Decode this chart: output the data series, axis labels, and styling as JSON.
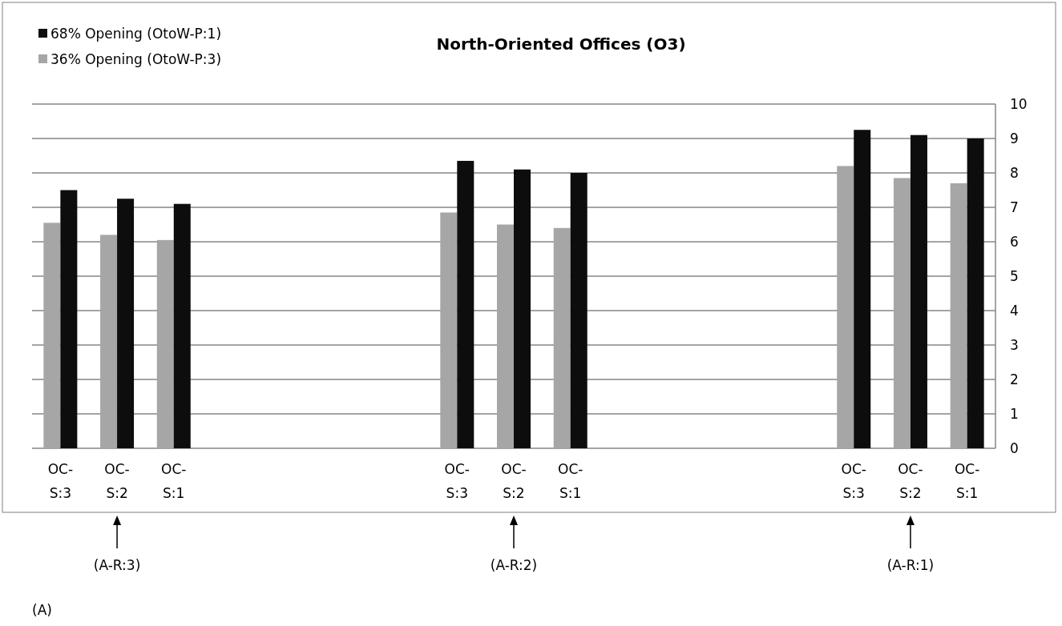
{
  "chart_data": {
    "type": "bar",
    "title": "North-Oriented Offices (O3)",
    "categories": [
      "OC-S:3",
      "OC-S:2",
      "OC-S:1",
      null,
      null,
      null,
      null,
      "OC-S:3",
      "OC-S:2",
      "OC-S:1",
      null,
      null,
      null,
      null,
      "OC-S:3",
      "OC-S:2",
      "OC-S:1"
    ],
    "series": [
      {
        "name": "36% Opening   (OtoW-P:3)",
        "color": "#a6a6a6",
        "values": [
          6.55,
          6.2,
          6.05,
          null,
          null,
          null,
          null,
          6.85,
          6.5,
          6.4,
          null,
          null,
          null,
          null,
          8.2,
          7.85,
          7.7
        ]
      },
      {
        "name": "68%  Opening   (OtoW-P:1)",
        "color": "#0d0d0d",
        "values": [
          7.5,
          7.25,
          7.1,
          null,
          null,
          null,
          null,
          8.35,
          8.1,
          8.0,
          null,
          null,
          null,
          null,
          9.25,
          9.1,
          9.0
        ]
      }
    ],
    "ylim": [
      0,
      10
    ],
    "yticks": [
      0,
      1,
      2,
      3,
      4,
      5,
      6,
      7,
      8,
      9,
      10
    ],
    "grid": "y",
    "legend": "top left",
    "annotations": [
      "(A-R:3)",
      "(A-R:2)",
      "(A-R:1)",
      "(A)"
    ]
  }
}
